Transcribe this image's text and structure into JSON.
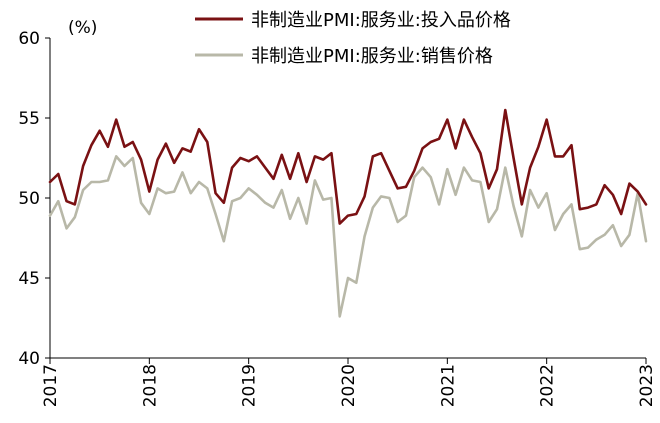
{
  "chart_data": {
    "type": "line",
    "unit_label": "(%)",
    "ylim": [
      40,
      60
    ],
    "yticks": [
      40,
      45,
      50,
      55,
      60
    ],
    "x_tick_labels": [
      "2017",
      "2018",
      "2019",
      "2020",
      "2021",
      "2022",
      "2023"
    ],
    "x_start": "2017-01",
    "grid": false,
    "legend_position": "top",
    "series": [
      {
        "name": "非制造业PMI:服务业:投入品价格",
        "color": "#7a1113",
        "values": [
          51.0,
          51.5,
          49.8,
          49.6,
          52.0,
          53.3,
          54.2,
          53.2,
          54.9,
          53.2,
          53.5,
          52.4,
          50.4,
          52.4,
          53.4,
          52.2,
          53.1,
          52.9,
          54.3,
          53.5,
          50.3,
          49.7,
          51.9,
          52.5,
          52.3,
          52.6,
          51.9,
          51.2,
          52.7,
          51.2,
          52.8,
          51.0,
          52.6,
          52.4,
          52.8,
          48.4,
          48.9,
          49.0,
          50.1,
          52.6,
          52.8,
          51.7,
          50.6,
          50.7,
          51.7,
          53.1,
          53.5,
          53.7,
          54.9,
          53.1,
          54.9,
          53.8,
          52.8,
          50.6,
          51.8,
          55.5,
          52.5,
          49.6,
          51.9,
          53.2,
          54.9,
          52.6,
          52.6,
          53.3,
          49.3,
          49.4,
          49.6,
          50.8,
          50.2,
          49.0,
          50.9,
          50.4,
          49.6
        ]
      },
      {
        "name": "非制造业PMI:服务业:销售价格",
        "color": "#b8b8a8",
        "values": [
          48.9,
          49.8,
          48.1,
          48.8,
          50.5,
          51.0,
          51.0,
          51.1,
          52.6,
          52.0,
          52.5,
          49.7,
          49.0,
          50.6,
          50.3,
          50.4,
          51.6,
          50.3,
          51.0,
          50.6,
          49.0,
          47.3,
          49.8,
          50.0,
          50.6,
          50.2,
          49.7,
          49.4,
          50.5,
          48.7,
          50.0,
          48.4,
          51.1,
          49.9,
          50.0,
          42.6,
          45.0,
          44.7,
          47.6,
          49.4,
          50.1,
          50.0,
          48.5,
          48.9,
          51.3,
          51.9,
          51.3,
          49.6,
          51.8,
          50.2,
          51.9,
          51.1,
          51.0,
          48.5,
          49.3,
          51.9,
          49.5,
          47.6,
          50.5,
          49.4,
          50.3,
          48.0,
          49.0,
          49.6,
          46.8,
          46.9,
          47.4,
          47.7,
          48.3,
          47.0,
          47.7,
          50.3,
          47.3
        ]
      }
    ]
  }
}
